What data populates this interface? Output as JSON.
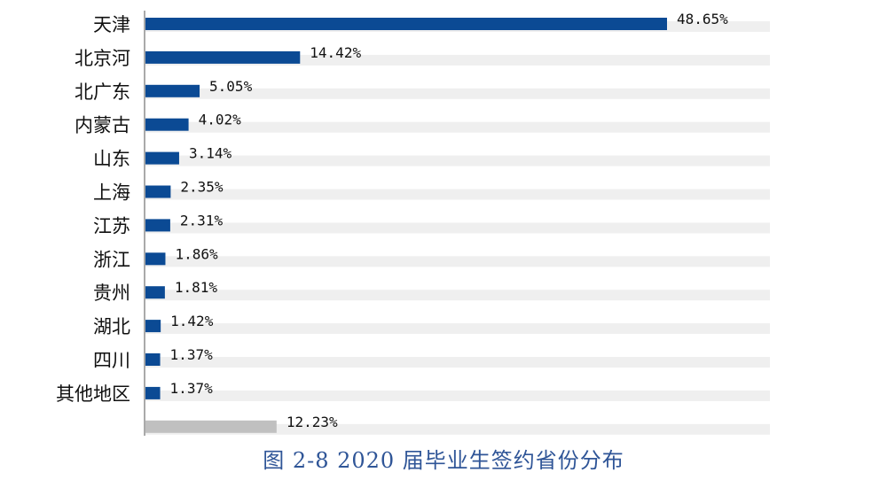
{
  "chart_data": {
    "type": "bar",
    "orientation": "horizontal",
    "categories": [
      "天津",
      "北京河",
      "北广东",
      "内蒙古",
      "山东",
      "上海",
      "江苏",
      "浙江",
      "贵州",
      "湖北",
      "四川",
      "其他地区",
      ""
    ],
    "values": [
      48.65,
      14.42,
      5.05,
      4.02,
      3.14,
      2.35,
      2.31,
      1.86,
      1.81,
      1.42,
      1.37,
      1.37,
      12.23
    ],
    "value_labels": [
      "48.65%",
      "14.42%",
      "5.05%",
      "4.02%",
      "3.14%",
      "2.35%",
      "2.31%",
      "1.86%",
      "1.81%",
      "1.42%",
      "1.37%",
      "1.37%",
      "12.23%"
    ],
    "bar_colors": [
      "#0b4a94",
      "#0b4a94",
      "#0b4a94",
      "#0b4a94",
      "#0b4a94",
      "#0b4a94",
      "#0b4a94",
      "#0b4a94",
      "#0b4a94",
      "#0b4a94",
      "#0b4a94",
      "#0b4a94",
      "#c0c0c0"
    ],
    "track_color": "#efefef",
    "xlim": [
      0,
      48.65
    ],
    "grid": false,
    "legend": "none"
  },
  "caption": "图 2-8 2020 届毕业生签约省份分布",
  "colors": {
    "accent": "#0b4a94",
    "caption": "#2f5597"
  }
}
